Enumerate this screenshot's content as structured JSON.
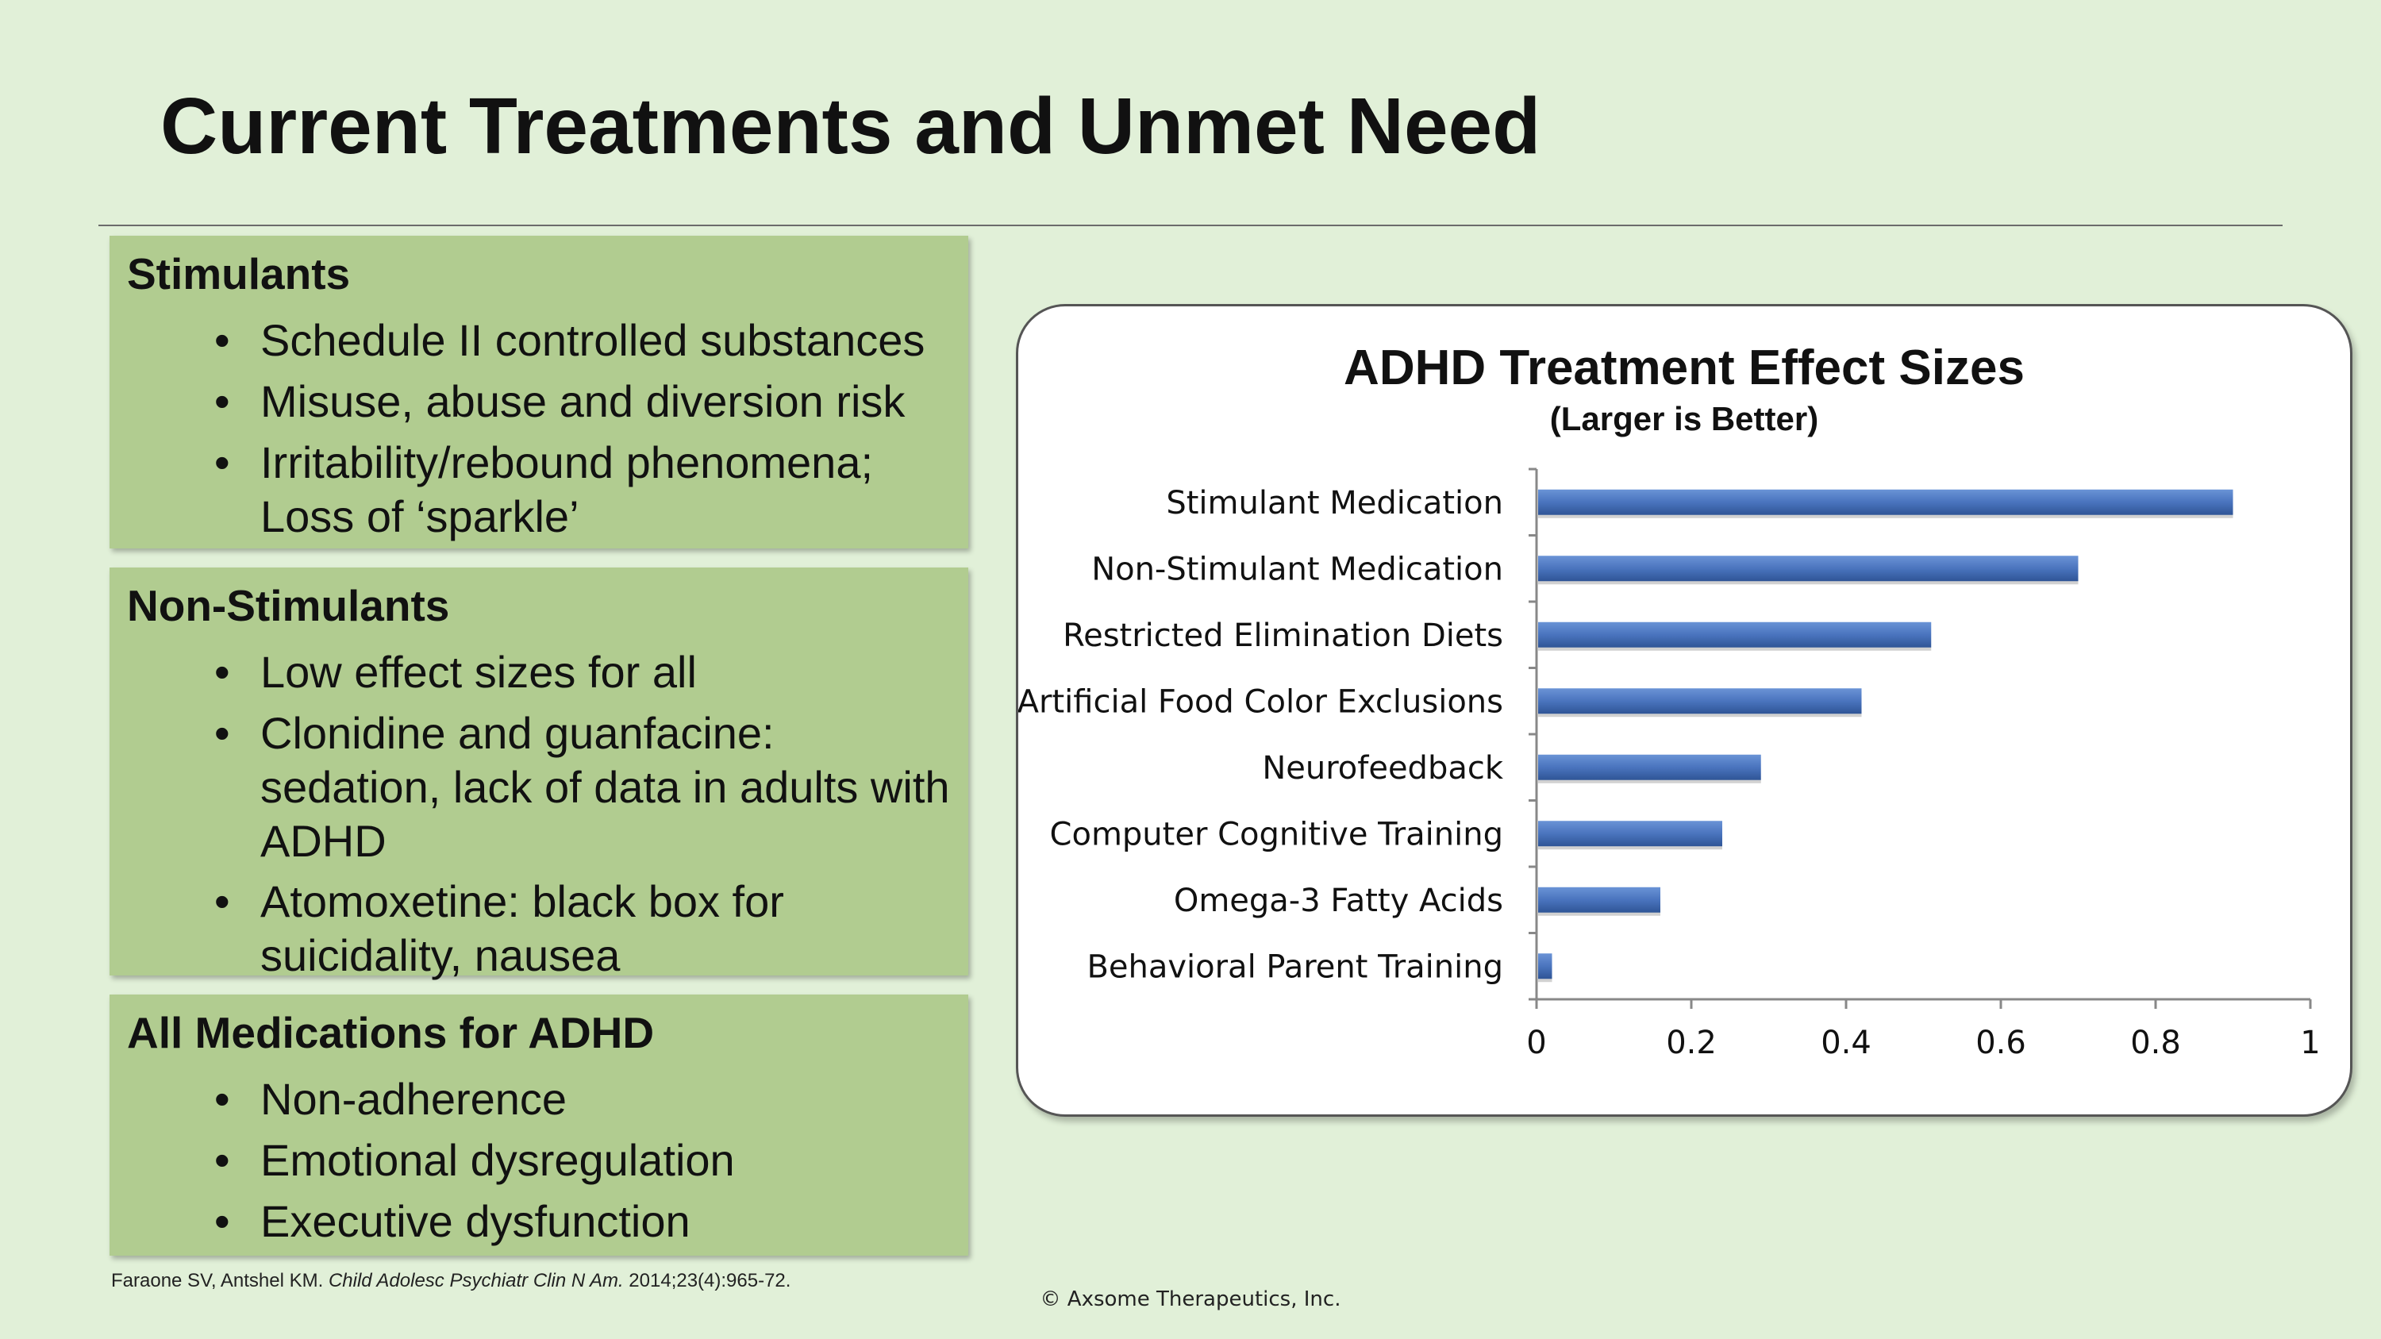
{
  "title": "Current Treatments and Unmet Need",
  "boxes": [
    {
      "heading": "Stimulants",
      "items": [
        "Schedule II controlled substances",
        "Misuse, abuse and diversion risk",
        "Irritability/rebound phenomena; Loss of ‘sparkle’"
      ]
    },
    {
      "heading": "Non-Stimulants",
      "items": [
        "Low effect sizes for all",
        "Clonidine and guanfacine: sedation, lack of data in adults with ADHD",
        "Atomoxetine: black box for suicidality, nausea"
      ]
    },
    {
      "heading": "All Medications for ADHD",
      "items": [
        "Non-adherence",
        "Emotional dysregulation",
        "Executive dysfunction"
      ]
    }
  ],
  "citation": {
    "authors": "Faraone SV, Antshel KM.",
    "journal": "Child Adolesc Psychiatr Clin N Am.",
    "details": "2014;23(4):965-72."
  },
  "copyright": "© Axsome Therapeutics, Inc.",
  "colors": {
    "background": "#e1f0d8",
    "box_fill": "#b1cc90",
    "bar_fill": "#4a74be"
  },
  "chart_data": {
    "type": "bar",
    "orientation": "horizontal",
    "title": "ADHD Treatment Effect Sizes",
    "subtitle": "(Larger is Better)",
    "categories": [
      "Stimulant Medication",
      "Non-Stimulant Medication",
      "Restricted Elimination Diets",
      "Artificial Food Color Exclusions",
      "Neurofeedback",
      "Computer Cognitive Training",
      "Omega-3 Fatty Acids",
      "Behavioral Parent Training"
    ],
    "values": [
      0.9,
      0.7,
      0.51,
      0.42,
      0.29,
      0.24,
      0.16,
      0.02
    ],
    "xlim": [
      0,
      1
    ],
    "xticks": [
      "0",
      "0.2",
      "0.4",
      "0.6",
      "0.8",
      "1"
    ],
    "xlabel": "",
    "ylabel": "",
    "grid": false
  }
}
